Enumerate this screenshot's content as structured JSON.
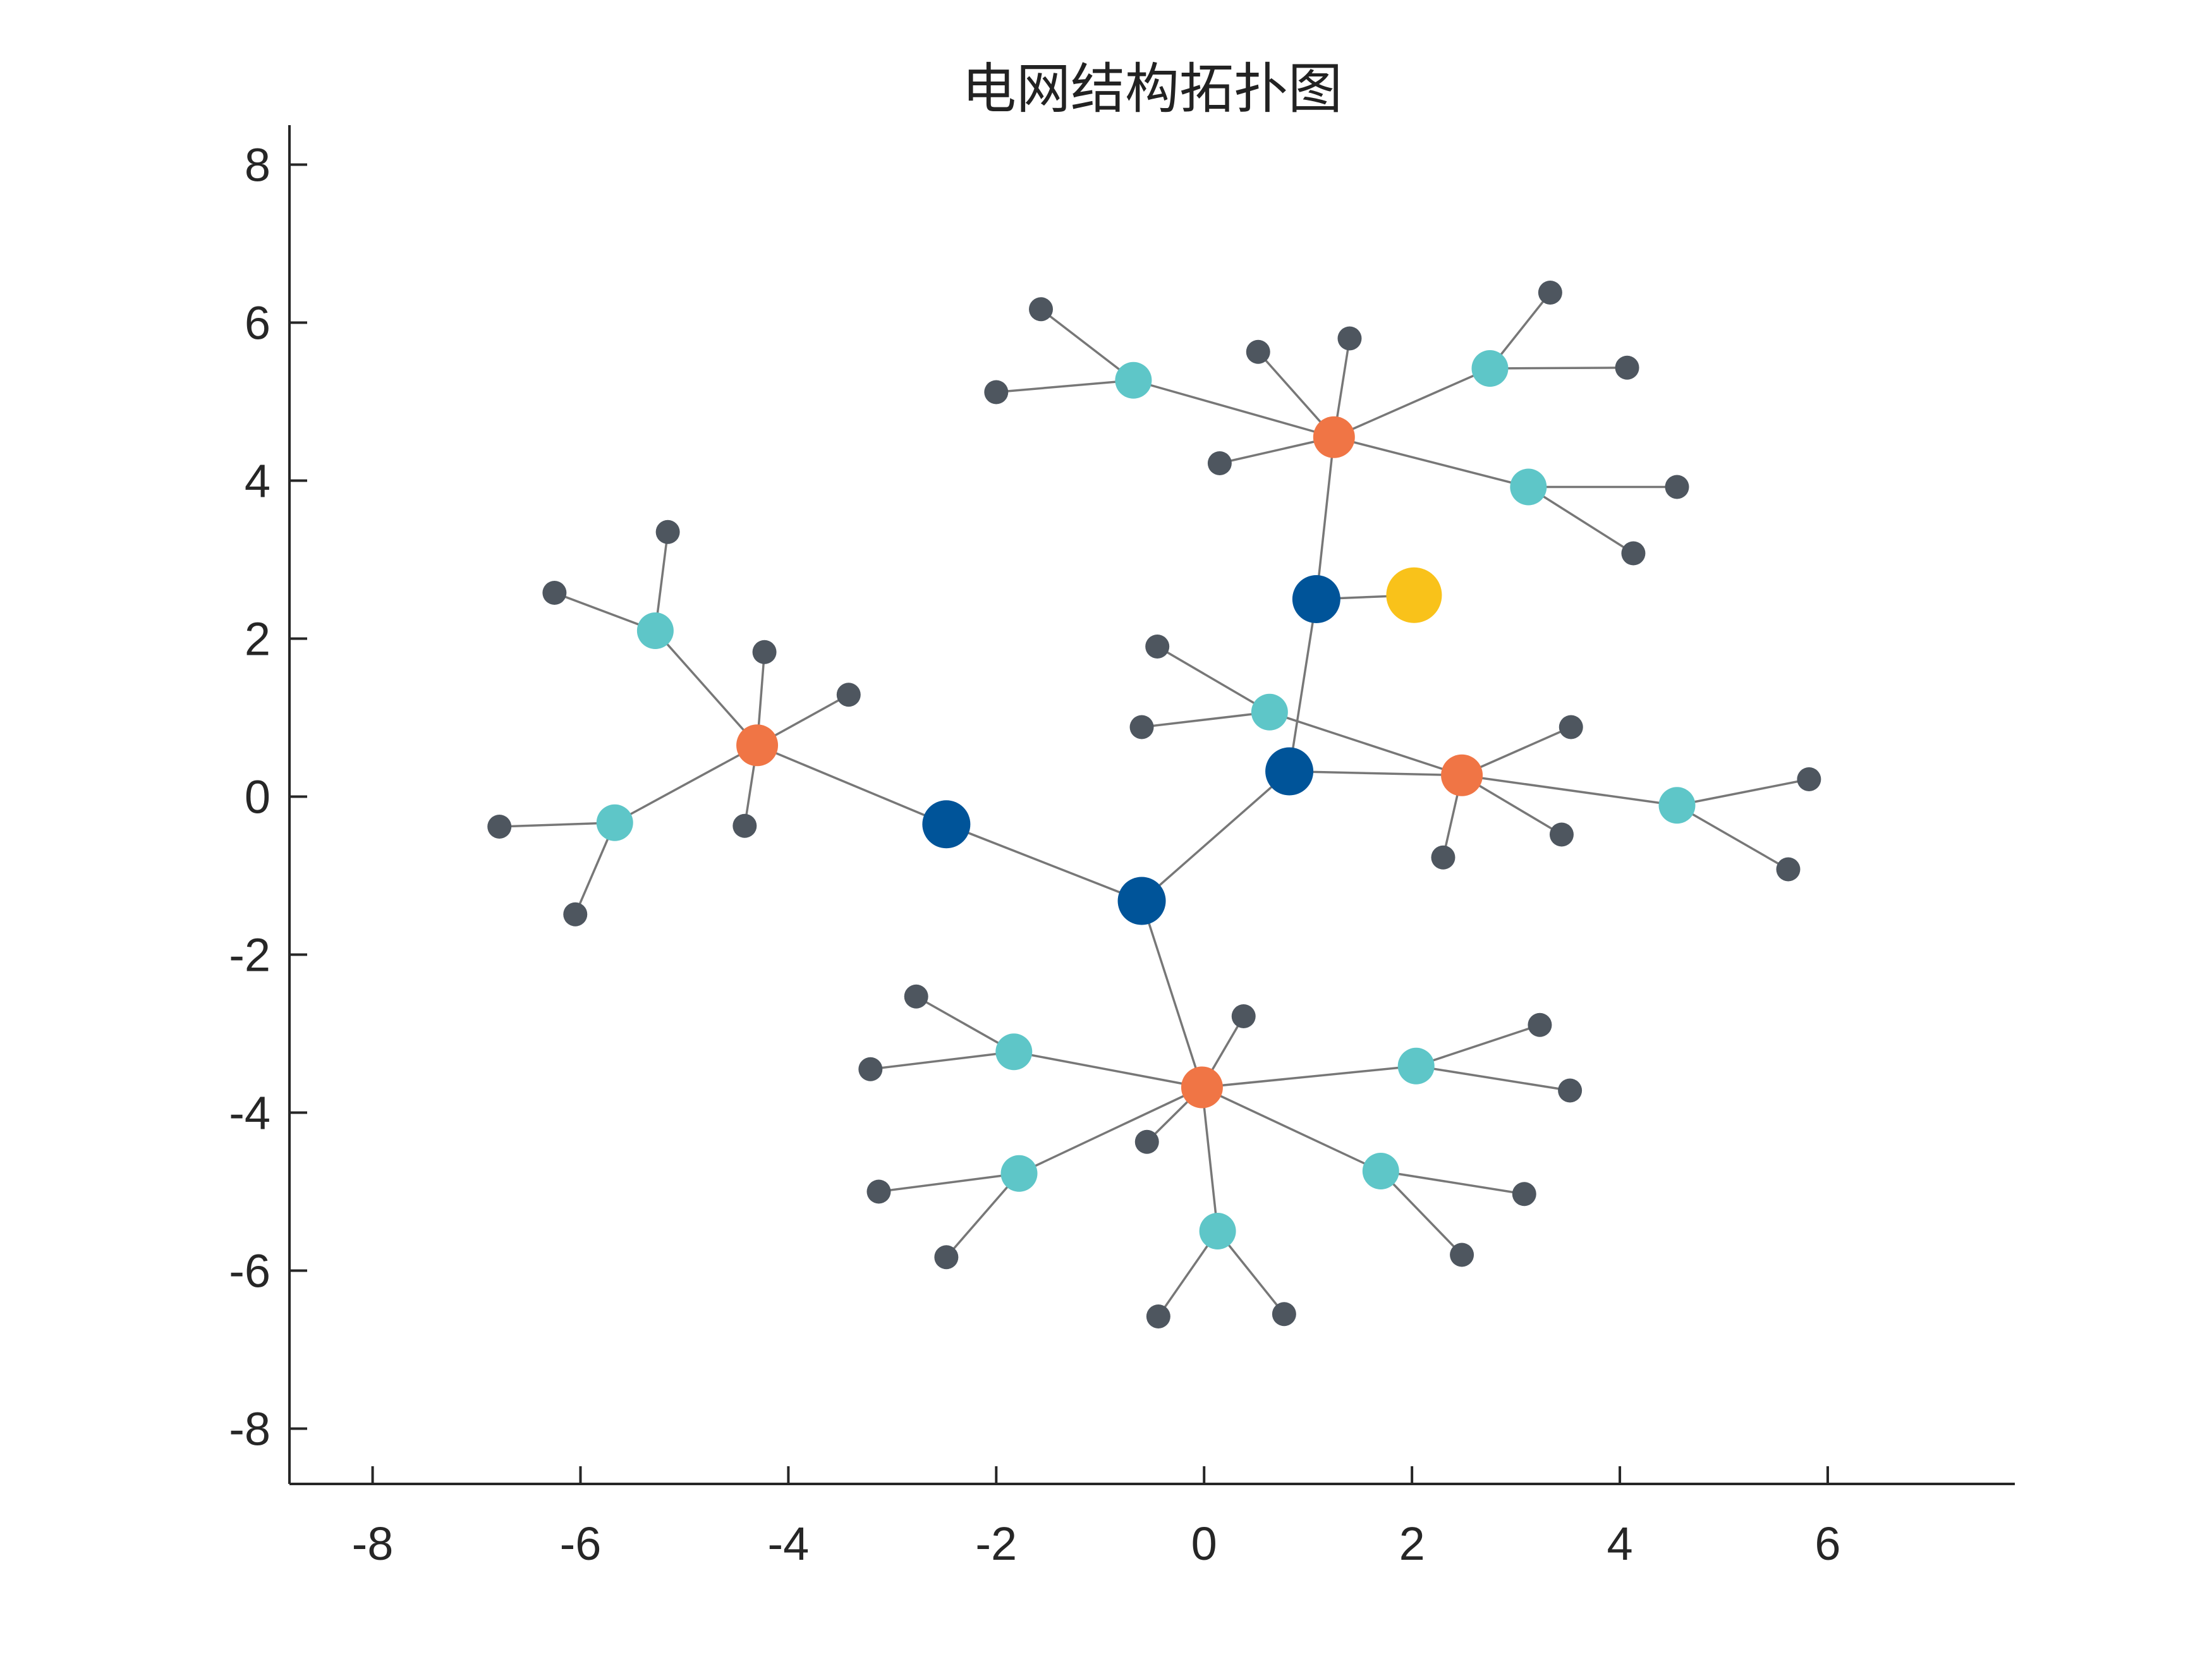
{
  "chart_data": {
    "type": "network",
    "title": "电网结构拓扑图",
    "xlabel": "",
    "ylabel": "",
    "xlim": [
      -8.8,
      7.8
    ],
    "ylim": [
      -8.7,
      8.5
    ],
    "xticks": [
      "-8",
      "-6",
      "-4",
      "-2",
      "0",
      "2",
      "4",
      "6"
    ],
    "yticks": [
      "8",
      "6",
      "4",
      "2",
      "0",
      "-2",
      "-4",
      "-6",
      "-8"
    ],
    "grid": false,
    "legend": "none",
    "node_colors": {
      "source": "#F9C21A",
      "substation": "#005499",
      "hub": "#F07545",
      "distribution": "#5EC6C8",
      "load": "#4E565F"
    },
    "edge_color": "#777777",
    "nodes": [
      {
        "id": "S",
        "type": "source",
        "x": 2.02,
        "y": 2.55
      },
      {
        "id": "A1",
        "type": "substation",
        "x": 1.08,
        "y": 2.5
      },
      {
        "id": "A2",
        "type": "substation",
        "x": 0.82,
        "y": 0.32
      },
      {
        "id": "A3",
        "type": "substation",
        "x": -0.6,
        "y": -1.32
      },
      {
        "id": "A4",
        "type": "substation",
        "x": -2.48,
        "y": -0.35
      },
      {
        "id": "H1",
        "type": "hub",
        "x": 1.25,
        "y": 4.55
      },
      {
        "id": "H2",
        "type": "hub",
        "x": 2.48,
        "y": 0.27
      },
      {
        "id": "H3",
        "type": "hub",
        "x": -0.02,
        "y": -3.68
      },
      {
        "id": "H4",
        "type": "hub",
        "x": -4.3,
        "y": 0.65
      },
      {
        "id": "D1a",
        "type": "distribution",
        "x": -0.68,
        "y": 5.27
      },
      {
        "id": "D1b",
        "type": "distribution",
        "x": 2.75,
        "y": 5.42
      },
      {
        "id": "D1c",
        "type": "distribution",
        "x": 3.12,
        "y": 3.92
      },
      {
        "id": "D2a",
        "type": "distribution",
        "x": 0.63,
        "y": 1.07
      },
      {
        "id": "D2b",
        "type": "distribution",
        "x": 4.55,
        "y": -0.11
      },
      {
        "id": "D3a",
        "type": "distribution",
        "x": -1.83,
        "y": -3.23
      },
      {
        "id": "D3b",
        "type": "distribution",
        "x": 2.04,
        "y": -3.41
      },
      {
        "id": "D3c",
        "type": "distribution",
        "x": -1.78,
        "y": -4.77
      },
      {
        "id": "D3d",
        "type": "distribution",
        "x": 1.7,
        "y": -4.74
      },
      {
        "id": "D3e",
        "type": "distribution",
        "x": 0.13,
        "y": -5.5
      },
      {
        "id": "D4a",
        "type": "distribution",
        "x": -5.28,
        "y": 2.1
      },
      {
        "id": "D4b",
        "type": "distribution",
        "x": -5.67,
        "y": -0.33
      },
      {
        "id": "L1",
        "type": "load",
        "x": -1.57,
        "y": 6.17
      },
      {
        "id": "L2",
        "type": "load",
        "x": -2.0,
        "y": 5.12
      },
      {
        "id": "L3",
        "type": "load",
        "x": 0.52,
        "y": 5.63
      },
      {
        "id": "L4",
        "type": "load",
        "x": 1.4,
        "y": 5.8
      },
      {
        "id": "L5",
        "type": "load",
        "x": 0.15,
        "y": 4.22
      },
      {
        "id": "L6",
        "type": "load",
        "x": 3.33,
        "y": 6.38
      },
      {
        "id": "L7",
        "type": "load",
        "x": 4.07,
        "y": 5.43
      },
      {
        "id": "L8",
        "type": "load",
        "x": 4.55,
        "y": 3.92
      },
      {
        "id": "L9",
        "type": "load",
        "x": 4.13,
        "y": 3.08
      },
      {
        "id": "L10",
        "type": "load",
        "x": -0.45,
        "y": 1.9
      },
      {
        "id": "L11",
        "type": "load",
        "x": -0.6,
        "y": 0.88
      },
      {
        "id": "L12",
        "type": "load",
        "x": 3.53,
        "y": 0.88
      },
      {
        "id": "L13",
        "type": "load",
        "x": 2.3,
        "y": -0.77
      },
      {
        "id": "L14",
        "type": "load",
        "x": 3.44,
        "y": -0.48
      },
      {
        "id": "L15",
        "type": "load",
        "x": 5.82,
        "y": 0.22
      },
      {
        "id": "L16",
        "type": "load",
        "x": 5.62,
        "y": -0.92
      },
      {
        "id": "L17",
        "type": "load",
        "x": -2.77,
        "y": -2.53
      },
      {
        "id": "L18",
        "type": "load",
        "x": -3.21,
        "y": -3.45
      },
      {
        "id": "L19",
        "type": "load",
        "x": 0.38,
        "y": -2.78
      },
      {
        "id": "L20",
        "type": "load",
        "x": -0.55,
        "y": -4.37
      },
      {
        "id": "L21",
        "type": "load",
        "x": 3.23,
        "y": -2.89
      },
      {
        "id": "L22",
        "type": "load",
        "x": 3.52,
        "y": -3.72
      },
      {
        "id": "L23",
        "type": "load",
        "x": -3.13,
        "y": -5.0
      },
      {
        "id": "L24",
        "type": "load",
        "x": -2.48,
        "y": -5.83
      },
      {
        "id": "L25",
        "type": "load",
        "x": 3.08,
        "y": -5.03
      },
      {
        "id": "L26",
        "type": "load",
        "x": 2.48,
        "y": -5.8
      },
      {
        "id": "L27",
        "type": "load",
        "x": -0.44,
        "y": -6.58
      },
      {
        "id": "L28",
        "type": "load",
        "x": 0.77,
        "y": -6.55
      },
      {
        "id": "L29",
        "type": "load",
        "x": -5.16,
        "y": 3.35
      },
      {
        "id": "L30",
        "type": "load",
        "x": -6.25,
        "y": 2.58
      },
      {
        "id": "L31",
        "type": "load",
        "x": -4.23,
        "y": 1.83
      },
      {
        "id": "L32",
        "type": "load",
        "x": -3.42,
        "y": 1.29
      },
      {
        "id": "L33",
        "type": "load",
        "x": -4.42,
        "y": -0.37
      },
      {
        "id": "L34",
        "type": "load",
        "x": -6.78,
        "y": -0.38
      },
      {
        "id": "L35",
        "type": "load",
        "x": -6.05,
        "y": -1.49
      }
    ],
    "edges": [
      [
        "S",
        "A1"
      ],
      [
        "A1",
        "A2"
      ],
      [
        "A1",
        "H1"
      ],
      [
        "A2",
        "A3"
      ],
      [
        "A2",
        "H2"
      ],
      [
        "A3",
        "A4"
      ],
      [
        "A3",
        "H3"
      ],
      [
        "A4",
        "H4"
      ],
      [
        "H1",
        "D1a"
      ],
      [
        "H1",
        "D1b"
      ],
      [
        "H1",
        "D1c"
      ],
      [
        "H1",
        "L3"
      ],
      [
        "H1",
        "L4"
      ],
      [
        "H1",
        "L5"
      ],
      [
        "D1a",
        "L1"
      ],
      [
        "D1a",
        "L2"
      ],
      [
        "D1b",
        "L6"
      ],
      [
        "D1b",
        "L7"
      ],
      [
        "D1c",
        "L8"
      ],
      [
        "D1c",
        "L9"
      ],
      [
        "H2",
        "D2a"
      ],
      [
        "H2",
        "D2b"
      ],
      [
        "H2",
        "L12"
      ],
      [
        "H2",
        "L13"
      ],
      [
        "H2",
        "L14"
      ],
      [
        "D2a",
        "L10"
      ],
      [
        "D2a",
        "L11"
      ],
      [
        "D2b",
        "L15"
      ],
      [
        "D2b",
        "L16"
      ],
      [
        "H3",
        "D3a"
      ],
      [
        "H3",
        "D3b"
      ],
      [
        "H3",
        "D3c"
      ],
      [
        "H3",
        "D3d"
      ],
      [
        "H3",
        "D3e"
      ],
      [
        "H3",
        "L19"
      ],
      [
        "H3",
        "L20"
      ],
      [
        "D3a",
        "L17"
      ],
      [
        "D3a",
        "L18"
      ],
      [
        "D3b",
        "L21"
      ],
      [
        "D3b",
        "L22"
      ],
      [
        "D3c",
        "L23"
      ],
      [
        "D3c",
        "L24"
      ],
      [
        "D3d",
        "L25"
      ],
      [
        "D3d",
        "L26"
      ],
      [
        "D3e",
        "L27"
      ],
      [
        "D3e",
        "L28"
      ],
      [
        "H4",
        "D4a"
      ],
      [
        "H4",
        "D4b"
      ],
      [
        "H4",
        "L31"
      ],
      [
        "H4",
        "L32"
      ],
      [
        "H4",
        "L33"
      ],
      [
        "D4a",
        "L29"
      ],
      [
        "D4a",
        "L30"
      ],
      [
        "D4b",
        "L34"
      ],
      [
        "D4b",
        "L35"
      ]
    ]
  }
}
